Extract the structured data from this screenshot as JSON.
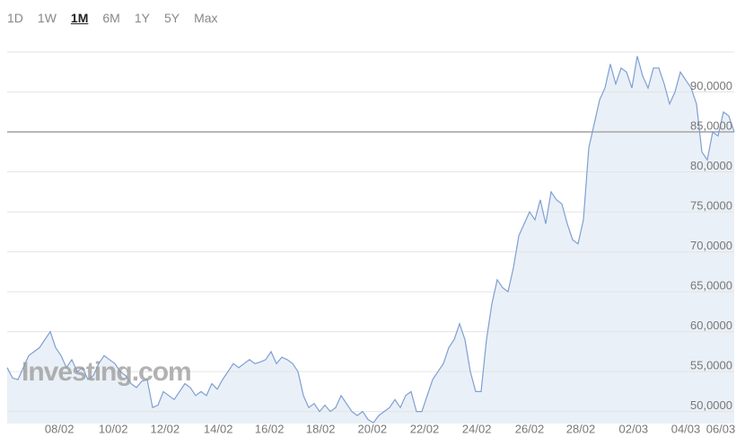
{
  "ranges": [
    "1D",
    "1W",
    "1M",
    "6M",
    "1Y",
    "5Y",
    "Max"
  ],
  "selected_range": "1M",
  "chart_data": {
    "type": "area",
    "watermark": "Investing.com",
    "color": "#7f9fd3",
    "fill": "#e6edf6",
    "values": [
      55500,
      54200,
      54000,
      55500,
      57000,
      57500,
      58000,
      59000,
      60000,
      58000,
      57000,
      55500,
      56500,
      55000,
      55500,
      54000,
      54500,
      56000,
      57000,
      56500,
      56000,
      55000,
      54500,
      53500,
      53000,
      53800,
      54000,
      50500,
      50800,
      52500,
      52000,
      51500,
      52500,
      53500,
      53000,
      52000,
      52500,
      52000,
      53500,
      52800,
      54000,
      55000,
      56000,
      55500,
      56000,
      56500,
      56000,
      56200,
      56500,
      57500,
      56000,
      56800,
      56500,
      56000,
      55000,
      52000,
      50500,
      51000,
      50000,
      50800,
      50000,
      50500,
      52000,
      51000,
      50000,
      49500,
      50000,
      49000,
      48600,
      49500,
      50000,
      50500,
      51500,
      50500,
      52000,
      52500,
      50000,
      50000,
      52000,
      54000,
      55000,
      56000,
      58000,
      59000,
      61000,
      59000,
      55000,
      52500,
      52500,
      59000,
      63500,
      66500,
      65500,
      65000,
      68000,
      72000,
      73500,
      75000,
      74000,
      76500,
      73500,
      77500,
      76500,
      76000,
      73500,
      71500,
      71000,
      74000,
      83000,
      86000,
      89000,
      90500,
      93500,
      91000,
      93000,
      92500,
      90500,
      94500,
      92000,
      90500,
      93000,
      93000,
      91000,
      88500,
      90000,
      92500,
      91500,
      90500,
      88500,
      82500,
      81500,
      85000,
      84500,
      87500,
      87000,
      85000
    ],
    "xlim": [
      0,
      135
    ],
    "xticks": [
      {
        "value": 9.7,
        "label": "08/02"
      },
      {
        "value": 19.7,
        "label": "10/02"
      },
      {
        "value": 29.3,
        "label": "12/02"
      },
      {
        "value": 39.2,
        "label": "14/02"
      },
      {
        "value": 48.7,
        "label": "16/02"
      },
      {
        "value": 58.2,
        "label": "18/02"
      },
      {
        "value": 67.8,
        "label": "20/02"
      },
      {
        "value": 77.5,
        "label": "22/02"
      },
      {
        "value": 87.2,
        "label": "24/02"
      },
      {
        "value": 97,
        "label": "26/02"
      },
      {
        "value": 106.5,
        "label": "28/02"
      },
      {
        "value": 116.3,
        "label": "02/03"
      },
      {
        "value": 126,
        "label": "04/03"
      },
      {
        "value": 132.5,
        "label": "06/03"
      }
    ],
    "ylim": [
      48500,
      95000
    ],
    "yticks": [
      {
        "value": 50000,
        "label": "50,0000"
      },
      {
        "value": 55000,
        "label": "55,0000"
      },
      {
        "value": 60000,
        "label": "60,0000"
      },
      {
        "value": 65000,
        "label": "65,0000"
      },
      {
        "value": 70000,
        "label": "70,0000"
      },
      {
        "value": 75000,
        "label": "75,0000"
      },
      {
        "value": 80000,
        "label": "80,0000"
      },
      {
        "value": 85000,
        "label": "85,0000"
      },
      {
        "value": 90000,
        "label": "90,0000"
      }
    ],
    "reference_line": 85000,
    "grid": true
  }
}
